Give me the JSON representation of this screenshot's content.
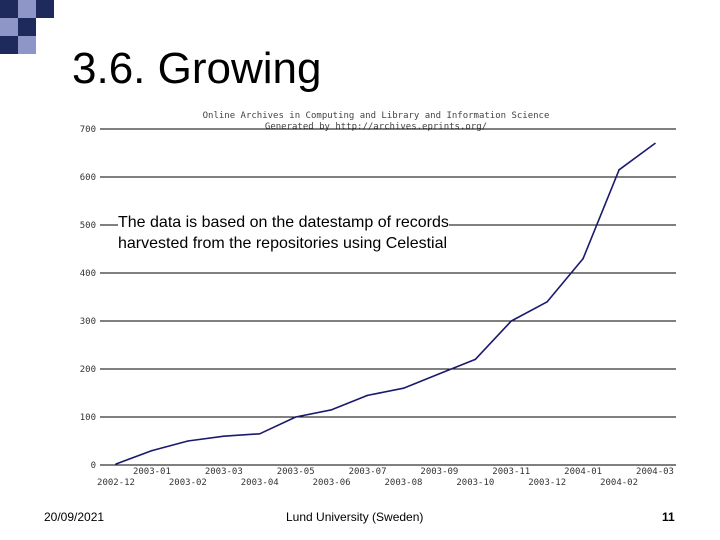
{
  "slide": {
    "title": "3.6. Growing",
    "annotation_line1": "The data is based on the datestamp of records",
    "annotation_line2": "harvested from the repositories using Celestial"
  },
  "footer": {
    "date": "20/09/2021",
    "center": "Lund University (Sweden)",
    "page": "11"
  },
  "colors": {
    "decor_dark": "#1f2a5c",
    "decor_light": "#8e96c8",
    "line": "#1a1a6e",
    "grid": "#000000"
  },
  "chart_data": {
    "type": "line",
    "title_line1": "Online Archives in Computing and Library and Information Science",
    "title_line2": "Generated by http://archives.eprints.org/",
    "ylim": [
      0,
      700
    ],
    "yticks": [
      "0",
      "100",
      "200",
      "300",
      "400",
      "500",
      "600",
      "700"
    ],
    "x_upper_labels": [
      "2003-01",
      "2003-03",
      "2003-05",
      "2003-07",
      "2003-09",
      "2003-11",
      "2004-01",
      "2004-03"
    ],
    "x_lower_labels": [
      "2002-12",
      "2003-02",
      "2003-04",
      "2003-06",
      "2003-08",
      "2003-10",
      "2003-12",
      "2004-02"
    ],
    "series": [
      {
        "x": [
          "2002-12",
          "2003-01",
          "2003-02",
          "2003-03",
          "2003-04",
          "2003-05",
          "2003-06",
          "2003-07",
          "2003-08",
          "2003-09",
          "2003-10",
          "2003-11",
          "2003-12",
          "2004-01",
          "2004-02",
          "2004-03"
        ],
        "values": [
          2,
          30,
          50,
          60,
          65,
          100,
          115,
          145,
          160,
          190,
          220,
          300,
          340,
          430,
          615,
          670
        ]
      }
    ]
  }
}
